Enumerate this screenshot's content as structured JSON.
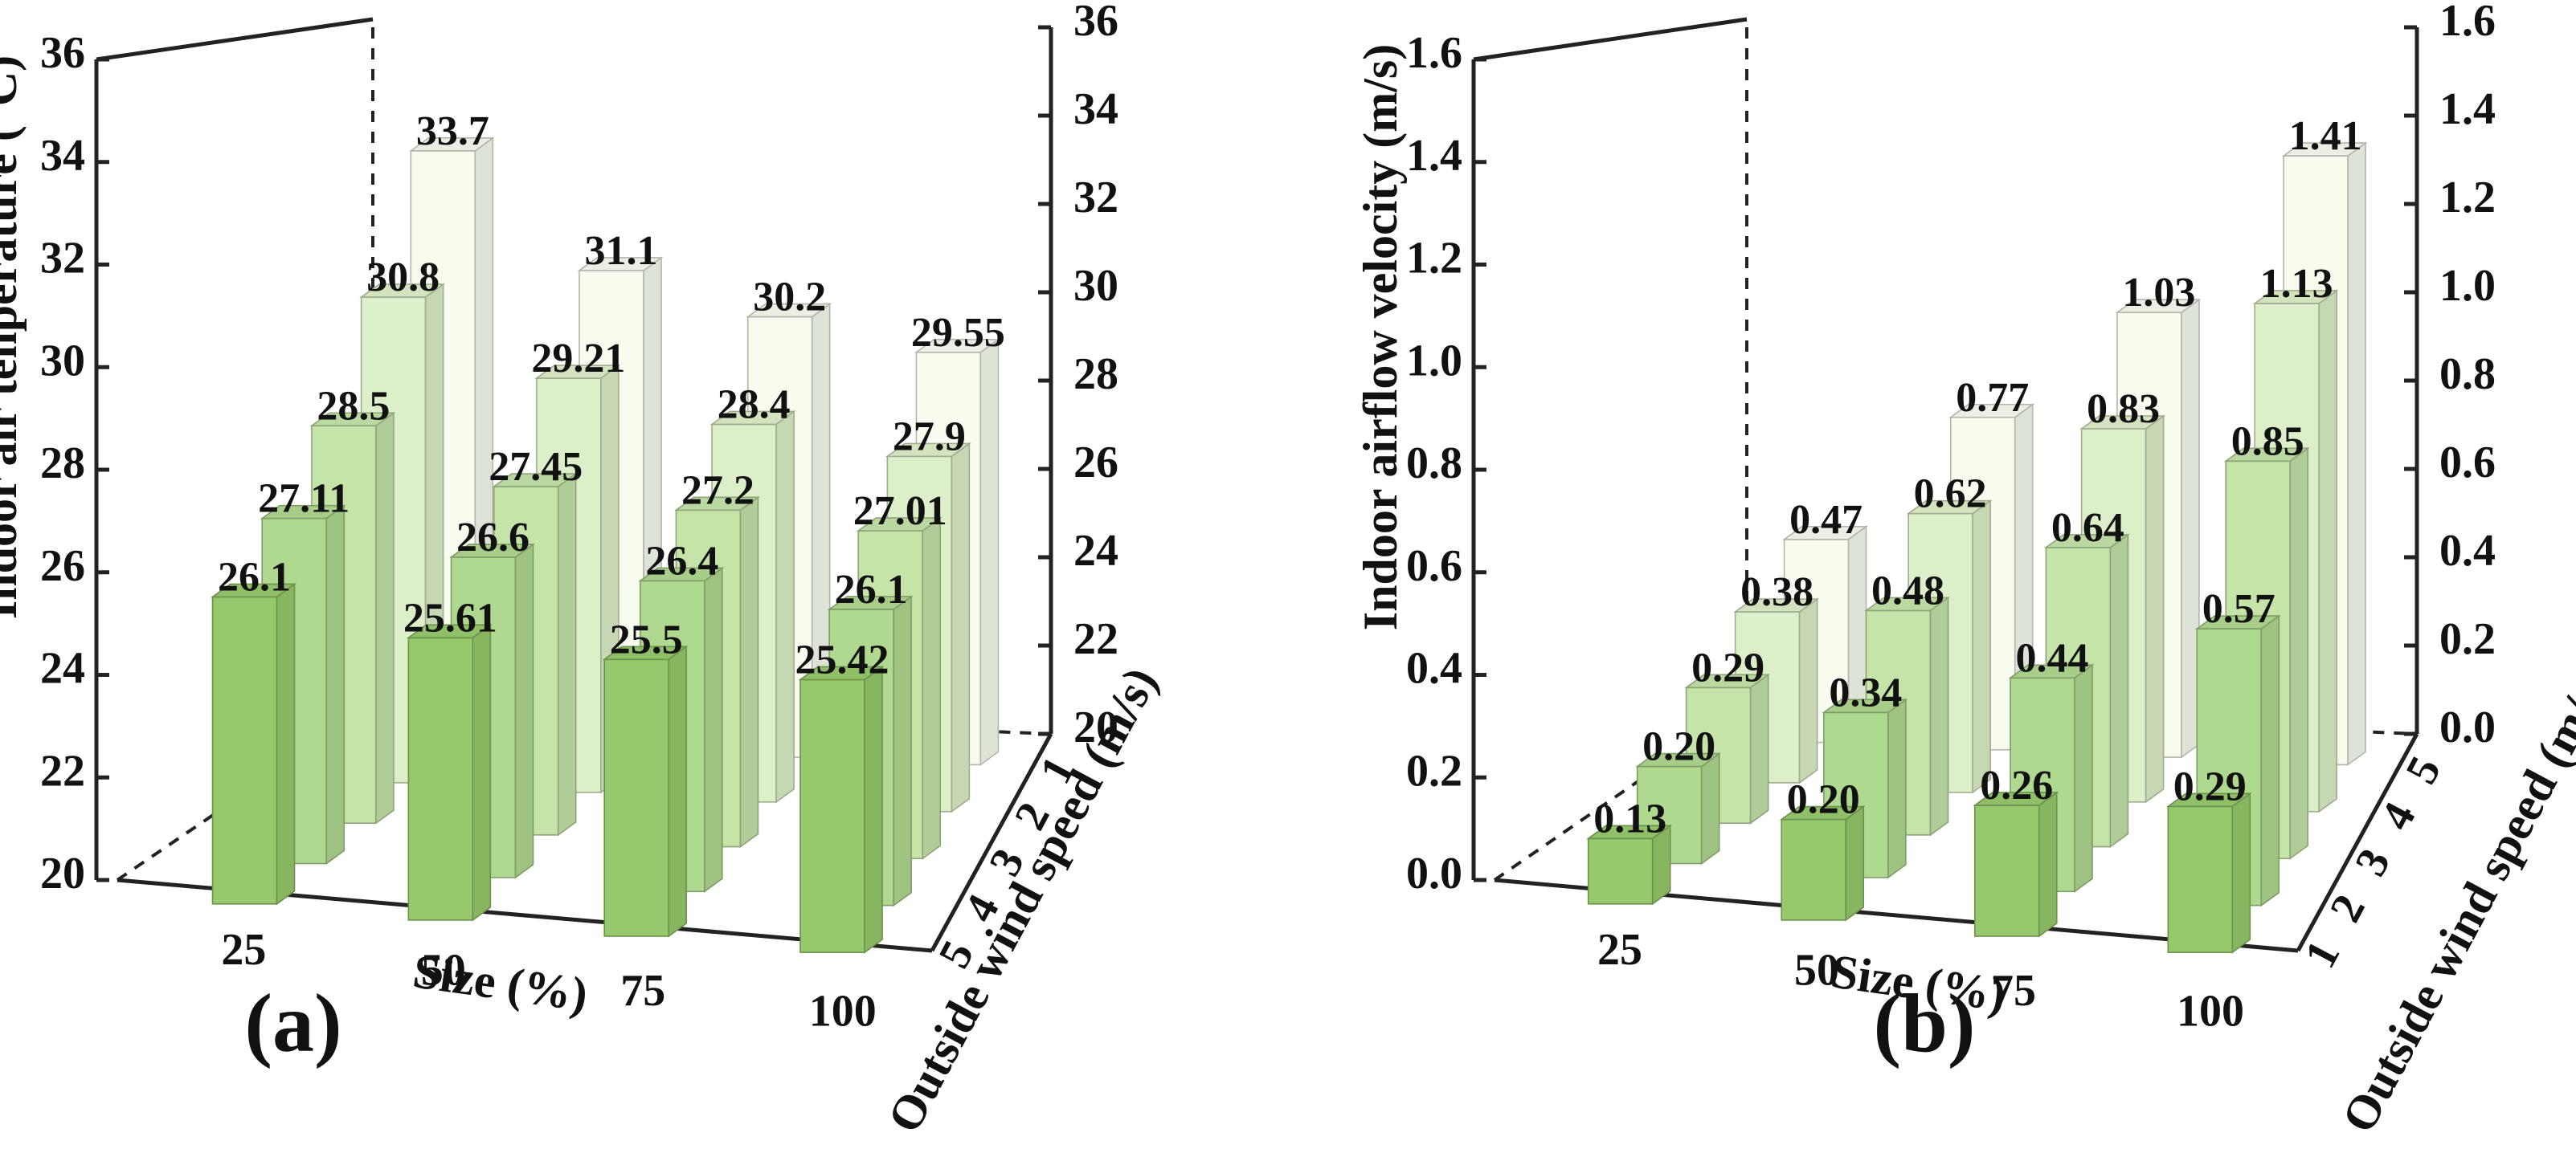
{
  "chart_data": [
    {
      "type": "bar",
      "panel_label": "(a)",
      "title": "",
      "ylabel": "Indoor air tenperature (°C)",
      "xlabel": "Size (%)",
      "zlabel": "Outside wind speed (m/s)",
      "categories": [
        "25",
        "50",
        "75",
        "100"
      ],
      "depth_categories": [
        "1",
        "2",
        "3",
        "4",
        "5"
      ],
      "ylim": [
        20,
        36
      ],
      "yticks": [
        "20",
        "22",
        "24",
        "26",
        "28",
        "30",
        "32",
        "34",
        "36"
      ],
      "right_yticks": [
        "20",
        "22",
        "24",
        "26",
        "28",
        "30",
        "32",
        "34",
        "36"
      ],
      "series": [
        {
          "name": "1",
          "values": [
            33.7,
            31.1,
            30.2,
            29.55
          ],
          "labels": [
            "33.7",
            "31.1",
            "30.2",
            "29.55"
          ]
        },
        {
          "name": "2",
          "values": [
            30.8,
            29.21,
            28.4,
            27.9
          ],
          "labels": [
            "30.8",
            "29.21",
            "28.4",
            "27.9"
          ]
        },
        {
          "name": "3",
          "values": [
            28.5,
            27.45,
            27.2,
            27.01
          ],
          "labels": [
            "28.5",
            "27.45",
            "27.2",
            "27.01"
          ]
        },
        {
          "name": "4",
          "values": [
            27.11,
            26.6,
            26.4,
            26.1
          ],
          "labels": [
            "27.11",
            "26.6",
            "26.4",
            "26.1"
          ]
        },
        {
          "name": "5",
          "values": [
            26.1,
            25.61,
            25.5,
            25.42
          ],
          "labels": [
            "26.1",
            "25.61",
            "25.5",
            "25.42"
          ]
        }
      ],
      "colors": [
        "#f7fcef",
        "#ddefc8",
        "#c4e4a8",
        "#afd98f",
        "#96c96b"
      ]
    },
    {
      "type": "bar",
      "panel_label": "(b)",
      "title": "",
      "ylabel": "Indoor airflow velocity (m/s)",
      "xlabel": "Size (%)",
      "zlabel": "Outside wind speed (m/s)",
      "categories": [
        "25",
        "50",
        "75",
        "100"
      ],
      "depth_categories": [
        "1",
        "2",
        "3",
        "4",
        "5"
      ],
      "ylim": [
        0,
        1.6
      ],
      "yticks": [
        "0.0",
        "0.2",
        "0.4",
        "0.6",
        "0.8",
        "1.0",
        "1.2",
        "1.4",
        "1.6"
      ],
      "right_yticks": [
        "0.0",
        "0.2",
        "0.4",
        "0.6",
        "0.8",
        "1.0",
        "1.2",
        "1.4",
        "1.6"
      ],
      "series": [
        {
          "name": "5",
          "values": [
            0.47,
            0.77,
            1.03,
            1.41
          ],
          "labels": [
            "0.47",
            "0.77",
            "1.03",
            "1.41"
          ]
        },
        {
          "name": "4",
          "values": [
            0.38,
            0.62,
            0.83,
            1.13
          ],
          "labels": [
            "0.38",
            "0.62",
            "0.83",
            "1.13"
          ]
        },
        {
          "name": "3",
          "values": [
            0.29,
            0.48,
            0.64,
            0.85
          ],
          "labels": [
            "0.29",
            "0.48",
            "0.64",
            "0.85"
          ]
        },
        {
          "name": "2",
          "values": [
            0.2,
            0.34,
            0.44,
            0.57
          ],
          "labels": [
            "0.20",
            "0.34",
            "0.44",
            "0.57"
          ]
        },
        {
          "name": "1",
          "values": [
            0.13,
            0.2,
            0.26,
            0.29
          ],
          "labels": [
            "0.13",
            "0.20",
            "0.26",
            "0.29"
          ]
        }
      ],
      "colors": [
        "#f7fcef",
        "#ddefc8",
        "#c4e4a8",
        "#afd98f",
        "#96c96b"
      ]
    }
  ]
}
